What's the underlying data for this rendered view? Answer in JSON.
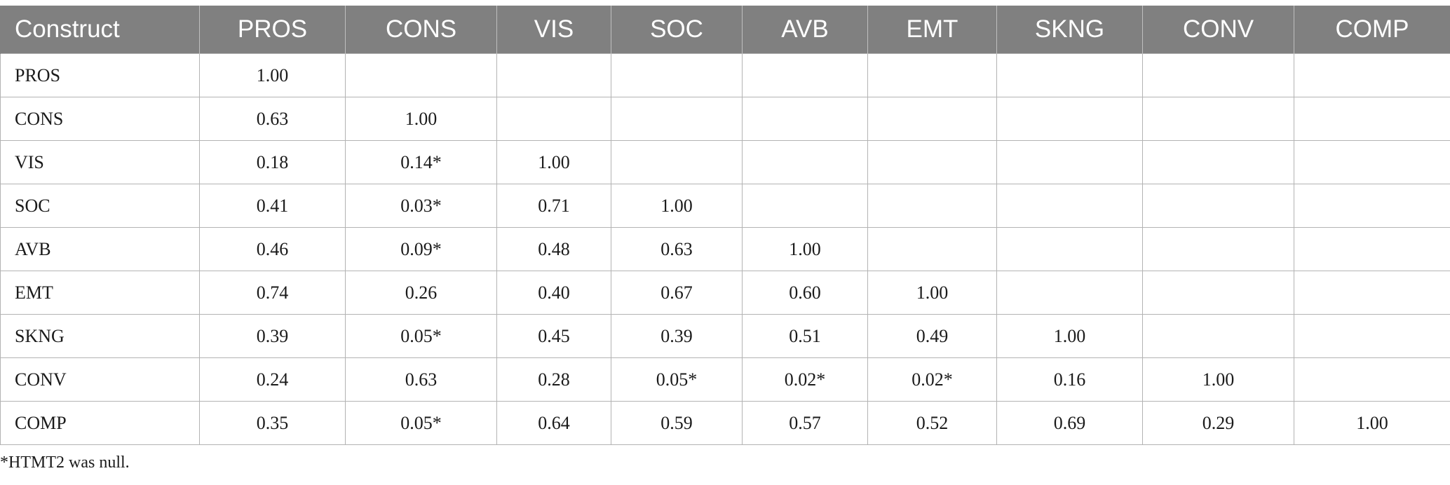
{
  "table": {
    "headers": [
      "Construct",
      "PROS",
      "CONS",
      "VIS",
      "SOC",
      "AVB",
      "EMT",
      "SKNG",
      "CONV",
      "COMP"
    ],
    "rows": [
      [
        "PROS",
        "1.00",
        "",
        "",
        "",
        "",
        "",
        "",
        "",
        ""
      ],
      [
        "CONS",
        "0.63",
        "1.00",
        "",
        "",
        "",
        "",
        "",
        "",
        ""
      ],
      [
        "VIS",
        "0.18",
        "0.14*",
        "1.00",
        "",
        "",
        "",
        "",
        "",
        ""
      ],
      [
        "SOC",
        "0.41",
        "0.03*",
        "0.71",
        "1.00",
        "",
        "",
        "",
        "",
        ""
      ],
      [
        "AVB",
        "0.46",
        "0.09*",
        "0.48",
        "0.63",
        "1.00",
        "",
        "",
        "",
        ""
      ],
      [
        "EMT",
        "0.74",
        "0.26",
        "0.40",
        "0.67",
        "0.60",
        "1.00",
        "",
        "",
        ""
      ],
      [
        "SKNG",
        "0.39",
        "0.05*",
        "0.45",
        "0.39",
        "0.51",
        "0.49",
        "1.00",
        "",
        ""
      ],
      [
        "CONV",
        "0.24",
        "0.63",
        "0.28",
        "0.05*",
        "0.02*",
        "0.02*",
        "0.16",
        "1.00",
        ""
      ],
      [
        "COMP",
        "0.35",
        "0.05*",
        "0.64",
        "0.59",
        "0.57",
        "0.52",
        "0.69",
        "0.29",
        "1.00"
      ]
    ]
  },
  "footnote": "*HTMT2 was null.",
  "colors": {
    "header_bg": "#808080",
    "header_text": "#ffffff",
    "grid": "#b3b3b3"
  }
}
